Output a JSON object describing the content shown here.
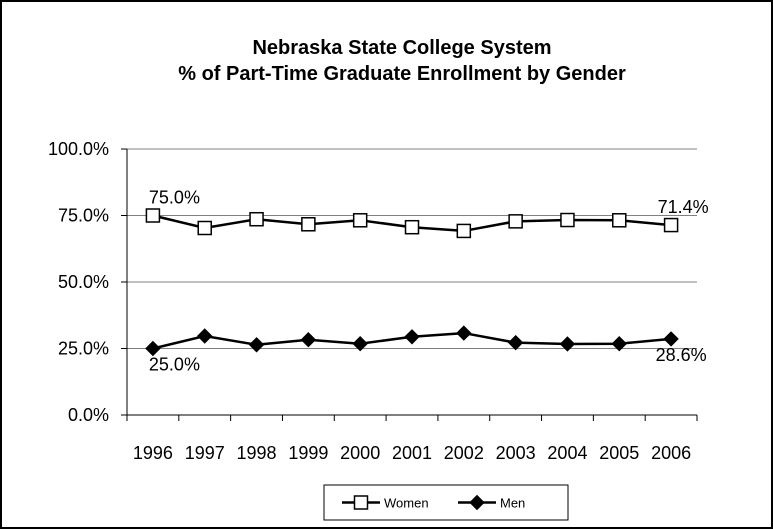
{
  "chart_data": {
    "type": "line",
    "title": "Nebraska State College System",
    "subtitle": "% of Part-Time Graduate Enrollment by Gender",
    "xlabel": "",
    "ylabel": "",
    "categories": [
      "1996",
      "1997",
      "1998",
      "1999",
      "2000",
      "2001",
      "2002",
      "2003",
      "2004",
      "2005",
      "2006"
    ],
    "ylim": [
      0,
      100
    ],
    "yticks": [
      0,
      25,
      50,
      75,
      100
    ],
    "ytick_labels": [
      "0.0%",
      "25.0%",
      "50.0%",
      "75.0%",
      "100.0%"
    ],
    "grid": true,
    "legend_position": "bottom",
    "series": [
      {
        "name": "Women",
        "marker": "square-open",
        "color": "#000000",
        "values": [
          75.0,
          70.3,
          73.6,
          71.7,
          73.2,
          70.6,
          69.2,
          72.8,
          73.3,
          73.2,
          71.4
        ]
      },
      {
        "name": "Men",
        "marker": "diamond-filled",
        "color": "#000000",
        "values": [
          25.0,
          29.7,
          26.4,
          28.3,
          26.8,
          29.4,
          30.8,
          27.2,
          26.7,
          26.8,
          28.6
        ]
      }
    ],
    "data_labels": [
      {
        "series": 0,
        "index": 0,
        "text": "75.0%"
      },
      {
        "series": 0,
        "index": 10,
        "text": "71.4%"
      },
      {
        "series": 1,
        "index": 0,
        "text": "25.0%"
      },
      {
        "series": 1,
        "index": 10,
        "text": "28.6%"
      }
    ]
  }
}
